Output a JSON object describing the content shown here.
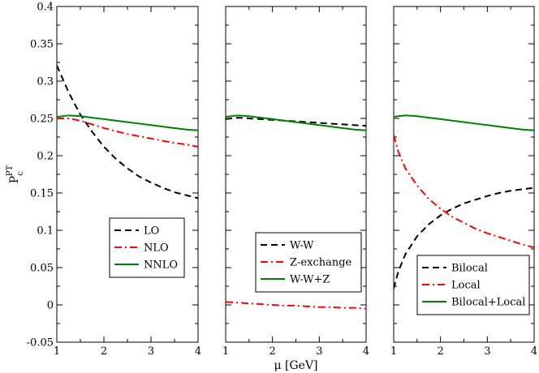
{
  "chart_data": [
    {
      "type": "line",
      "panel": "left",
      "xlabel": "",
      "ylabel": "P_c^PT",
      "xlim": [
        1,
        4
      ],
      "ylim": [
        -0.05,
        0.4
      ],
      "xticks": [
        1,
        2,
        3,
        4
      ],
      "yticks": [
        -0.05,
        0,
        0.05,
        0.1,
        0.15,
        0.2,
        0.25,
        0.3,
        0.35,
        0.4
      ],
      "x": [
        1.0,
        1.25,
        1.5,
        1.75,
        2.0,
        2.25,
        2.5,
        2.75,
        3.0,
        3.25,
        3.5,
        3.75,
        4.0
      ],
      "series": [
        {
          "name": "LO",
          "color": "#000000",
          "dash": "dashed",
          "values": [
            0.321,
            0.285,
            0.255,
            0.232,
            0.212,
            0.196,
            0.183,
            0.172,
            0.164,
            0.157,
            0.151,
            0.147,
            0.143
          ]
        },
        {
          "name": "NLO",
          "color": "#ff0000",
          "dash": "dashdot",
          "values": [
            0.25,
            0.25,
            0.247,
            0.242,
            0.237,
            0.233,
            0.229,
            0.226,
            0.223,
            0.22,
            0.217,
            0.215,
            0.212
          ]
        },
        {
          "name": "NNLO",
          "color": "#008000",
          "dash": "solid",
          "values": [
            0.252,
            0.254,
            0.253,
            0.251,
            0.249,
            0.247,
            0.245,
            0.243,
            0.241,
            0.239,
            0.237,
            0.235,
            0.234
          ]
        }
      ],
      "legend": "lower-right"
    },
    {
      "type": "line",
      "panel": "middle",
      "xlabel": "μ  [GeV]",
      "ylabel": "",
      "xlim": [
        1,
        4
      ],
      "ylim": [
        -0.05,
        0.4
      ],
      "xticks": [
        1,
        2,
        3,
        4
      ],
      "x": [
        1.0,
        1.25,
        1.5,
        1.75,
        2.0,
        2.25,
        2.5,
        2.75,
        3.0,
        3.25,
        3.5,
        3.75,
        4.0
      ],
      "series": [
        {
          "name": "W-W",
          "color": "#000000",
          "dash": "dashed",
          "values": [
            0.249,
            0.251,
            0.25,
            0.249,
            0.248,
            0.247,
            0.246,
            0.245,
            0.244,
            0.243,
            0.242,
            0.241,
            0.24
          ]
        },
        {
          "name": "Z-exchange",
          "color": "#ff0000",
          "dash": "dashdot",
          "values": [
            0.004,
            0.003,
            0.002,
            0.001,
            0.0,
            -0.001,
            -0.001,
            -0.002,
            -0.003,
            -0.003,
            -0.004,
            -0.004,
            -0.005
          ]
        },
        {
          "name": "W-W+Z",
          "color": "#008000",
          "dash": "solid",
          "values": [
            0.252,
            0.254,
            0.253,
            0.251,
            0.249,
            0.247,
            0.245,
            0.243,
            0.241,
            0.239,
            0.237,
            0.235,
            0.234
          ]
        }
      ],
      "legend": "lower-right"
    },
    {
      "type": "line",
      "panel": "right",
      "xlabel": "",
      "ylabel": "",
      "xlim": [
        1,
        4
      ],
      "ylim": [
        -0.05,
        0.4
      ],
      "xticks": [
        1,
        2,
        3,
        4
      ],
      "x": [
        1.0,
        1.1,
        1.25,
        1.5,
        1.75,
        2.0,
        2.25,
        2.5,
        2.75,
        3.0,
        3.25,
        3.5,
        3.75,
        4.0
      ],
      "series": [
        {
          "name": "Bilocal",
          "color": "#000000",
          "dash": "dashed",
          "values": [
            0.022,
            0.045,
            0.068,
            0.092,
            0.108,
            0.12,
            0.129,
            0.136,
            0.141,
            0.146,
            0.15,
            0.153,
            0.155,
            0.157
          ]
        },
        {
          "name": "Local",
          "color": "#ff0000",
          "dash": "dashdot",
          "values": [
            0.228,
            0.205,
            0.183,
            0.16,
            0.142,
            0.129,
            0.118,
            0.11,
            0.102,
            0.096,
            0.091,
            0.086,
            0.081,
            0.077
          ]
        },
        {
          "name": "Bilocal+Local",
          "color": "#008000",
          "dash": "solid",
          "values": [
            0.252,
            0.253,
            0.254,
            0.253,
            0.251,
            0.249,
            0.247,
            0.245,
            0.243,
            0.241,
            0.239,
            0.237,
            0.235,
            0.234
          ]
        }
      ],
      "legend": "lower-right"
    }
  ],
  "ylabel_text": {
    "base": "P",
    "sub": "c",
    "sup": "PT"
  }
}
